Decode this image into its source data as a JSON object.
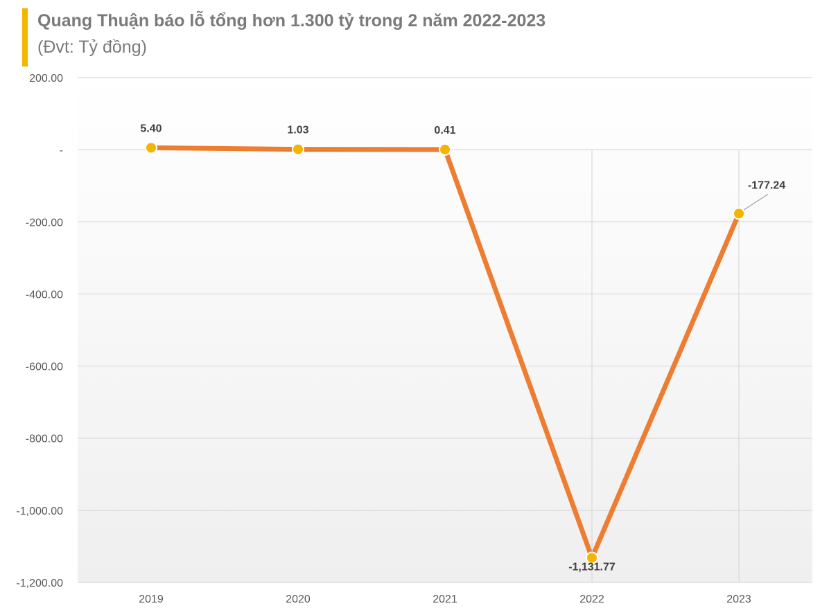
{
  "header": {
    "title": "Quang Thuận báo lỗ tổng hơn 1.300 tỷ trong 2 năm 2022-2023",
    "subtitle": "(Đvt: Tỷ đồng)"
  },
  "colors": {
    "accent_bar": "#f5b400",
    "line": "#ed7d31",
    "marker": "#f5b400",
    "grid": "#d9d9d9"
  },
  "chart_data": {
    "type": "line",
    "title": "Quang Thuận báo lỗ tổng hơn 1.300 tỷ trong 2 năm 2022-2023",
    "subtitle": "(Đvt: Tỷ đồng)",
    "categories": [
      "2019",
      "2020",
      "2021",
      "2022",
      "2023"
    ],
    "series": [
      {
        "values": [
          5.4,
          1.03,
          0.41,
          -1131.77,
          -177.24
        ]
      }
    ],
    "data_labels": [
      "5.40",
      "1.03",
      "0.41",
      "-1,131.77",
      "-177.24"
    ],
    "ylim": [
      -1200,
      200
    ],
    "yticks": [
      200,
      0,
      -200,
      -400,
      -600,
      -800,
      -1000,
      -1200
    ],
    "ytick_labels": [
      "200.00",
      "-",
      "-200.00",
      "-400.00",
      "-600.00",
      "-800.00",
      "-1,000.00",
      "-1,200.00"
    ],
    "grid": true,
    "legend": "none"
  }
}
